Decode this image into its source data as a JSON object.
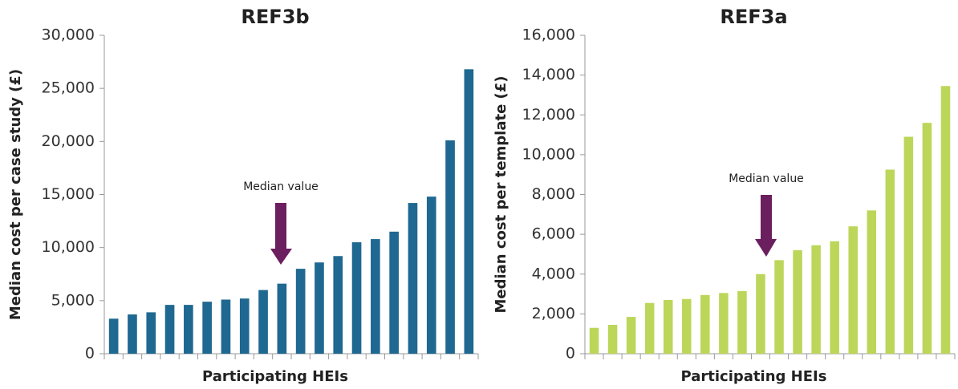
{
  "chart_data": [
    {
      "type": "bar",
      "title": "REF3b",
      "x_label": "Participating HEIs",
      "y_label": "Median cost per case study (£)",
      "annotation": "Median value",
      "color": "#1f6891",
      "categories": [
        null,
        null,
        null,
        null,
        null,
        null,
        null,
        null,
        null,
        null,
        null,
        null,
        null,
        null,
        null,
        null,
        null,
        null,
        null,
        null
      ],
      "values": [
        3300,
        3700,
        3900,
        4600,
        4600,
        4900,
        5100,
        5200,
        6000,
        6600,
        8000,
        8600,
        9200,
        10500,
        10800,
        11500,
        14200,
        14800,
        20100,
        26800
      ],
      "ylim": [
        0,
        30000
      ],
      "yticks": [
        0,
        {
          "value": 5000,
          "label": "5,000"
        },
        {
          "value": 10000,
          "label": "10,000"
        },
        {
          "value": 15000,
          "label": "15,000"
        },
        {
          "value": 20000,
          "label": "20,000"
        },
        {
          "value": 25000,
          "label": "25,000"
        },
        {
          "value": 30000,
          "label": "30,000"
        }
      ]
    },
    {
      "type": "bar",
      "title": "REF3a",
      "x_label": "Participating HEIs",
      "y_label": "Median cost per template (£)",
      "annotation": "Median value",
      "color": "#bcd65a",
      "categories": [
        null,
        null,
        null,
        null,
        null,
        null,
        null,
        null,
        null,
        null,
        null,
        null,
        null,
        null,
        null,
        null,
        null,
        null,
        null,
        null
      ],
      "values": [
        1300,
        1450,
        1850,
        2550,
        2700,
        2750,
        2950,
        3050,
        3150,
        4000,
        4700,
        5200,
        5450,
        5650,
        6400,
        7200,
        9250,
        10900,
        11600,
        13450
      ],
      "ylim": [
        0,
        16000
      ],
      "yticks": [
        0,
        {
          "value": 2000,
          "label": "2,000"
        },
        {
          "value": 4000,
          "label": "4,000"
        },
        {
          "value": 6000,
          "label": "6,000"
        },
        {
          "value": 8000,
          "label": "8,000"
        },
        {
          "value": 10000,
          "label": "10,000"
        },
        {
          "value": 12000,
          "label": "12,000"
        },
        {
          "value": 14000,
          "label": "14,000"
        },
        {
          "value": 16000,
          "label": "16,000"
        }
      ]
    }
  ]
}
